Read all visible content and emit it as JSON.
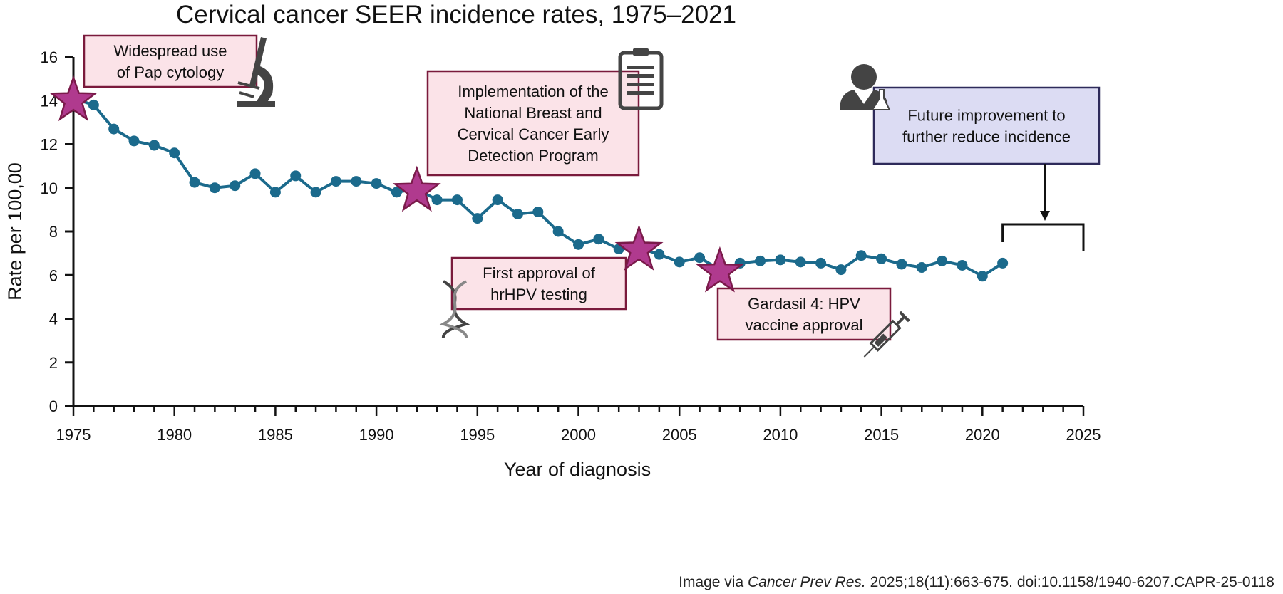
{
  "chart_data": {
    "type": "line",
    "title": "Cervical cancer SEER incidence rates, 1975–2021",
    "xlabel": "Year of diagnosis",
    "ylabel": "Rate per 100,00",
    "xlim": [
      1975,
      2025
    ],
    "ylim": [
      0,
      16
    ],
    "x_ticks": [
      1975,
      1980,
      1985,
      1990,
      1995,
      2000,
      2005,
      2010,
      2015,
      2020,
      2025
    ],
    "y_ticks": [
      0,
      2,
      4,
      6,
      8,
      10,
      12,
      14,
      16
    ],
    "grid": false,
    "series": [
      {
        "name": "Incidence rate",
        "color": "#1b6a8c",
        "x": [
          1975,
          1976,
          1977,
          1978,
          1979,
          1980,
          1981,
          1982,
          1983,
          1984,
          1985,
          1986,
          1987,
          1988,
          1989,
          1990,
          1991,
          1992,
          1993,
          1994,
          1995,
          1996,
          1997,
          1998,
          1999,
          2000,
          2001,
          2002,
          2003,
          2004,
          2005,
          2006,
          2007,
          2008,
          2009,
          2010,
          2011,
          2012,
          2013,
          2014,
          2015,
          2016,
          2017,
          2018,
          2019,
          2020,
          2021
        ],
        "values": [
          14.1,
          13.8,
          12.7,
          12.15,
          11.95,
          11.6,
          10.25,
          10.0,
          10.1,
          10.65,
          9.8,
          10.55,
          9.8,
          10.3,
          10.3,
          10.2,
          9.8,
          9.95,
          9.45,
          9.45,
          8.6,
          9.45,
          8.8,
          8.9,
          8.0,
          7.4,
          7.65,
          7.2,
          7.25,
          6.95,
          6.6,
          6.8,
          6.25,
          6.55,
          6.65,
          6.7,
          6.6,
          6.55,
          6.25,
          6.9,
          6.75,
          6.5,
          6.35,
          6.65,
          6.45,
          5.95,
          6.55
        ]
      }
    ],
    "milestones": [
      {
        "year": 1975,
        "value": 14.1,
        "label_lines": [
          "Widespread use",
          "of Pap cytology"
        ],
        "icon": "microscope-icon"
      },
      {
        "year": 1992,
        "value": 9.95,
        "label_lines": [
          "Implementation of the",
          "National Breast and",
          "Cervical Cancer Early",
          "Detection Program"
        ],
        "icon": "clipboard-icon"
      },
      {
        "year": 2003,
        "value": 7.25,
        "label_lines": [
          "First approval of",
          "hrHPV testing"
        ],
        "icon": "dna-icon"
      },
      {
        "year": 2007,
        "value": 6.25,
        "label_lines": [
          "Gardasil 4: HPV",
          "vaccine approval"
        ],
        "icon": "syringe-icon"
      }
    ],
    "future_annotation": {
      "label_lines": [
        "Future improvement to",
        "further reduce incidence"
      ],
      "bracket_range": [
        2021,
        2025
      ],
      "icon": "scientist-icon"
    },
    "colors": {
      "line": "#1b6a8c",
      "star_fill": "#b03a8e",
      "star_stroke": "#7a1a4a",
      "milestone_box_fill": "#fbe3e8",
      "milestone_box_stroke": "#7a1a3c",
      "future_box_fill": "#dcdcf3",
      "future_box_stroke": "#2e2a5a",
      "icon": "#444444"
    }
  },
  "source": {
    "prefix": "Image via ",
    "journal": "Cancer Prev Res.",
    "suffix": " 2025;18(11):663-675. doi:10.1158/1940-6207.CAPR-25-0118"
  }
}
